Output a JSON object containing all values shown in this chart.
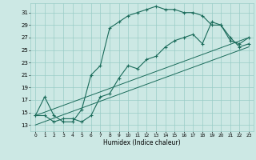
{
  "xlabel": "Humidex (Indice chaleur)",
  "bg_color": "#cce8e4",
  "grid_color": "#99ccc6",
  "line_color": "#1a6b5a",
  "xlim": [
    -0.5,
    23.5
  ],
  "ylim": [
    12.0,
    32.5
  ],
  "yticks": [
    13,
    15,
    17,
    19,
    21,
    23,
    25,
    27,
    29,
    31
  ],
  "xticks": [
    0,
    1,
    2,
    3,
    4,
    5,
    6,
    7,
    8,
    9,
    10,
    11,
    12,
    13,
    14,
    15,
    16,
    17,
    18,
    19,
    20,
    21,
    22,
    23
  ],
  "series1": [
    14.5,
    17.5,
    14.5,
    13.5,
    13.5,
    15.5,
    21.0,
    22.5,
    28.5,
    29.5,
    30.5,
    31.0,
    31.5,
    32.0,
    31.5,
    31.5,
    31.0,
    31.0,
    30.5,
    29.0,
    29.0,
    26.5,
    26.0,
    27.0
  ],
  "series2": [
    14.5,
    14.5,
    13.5,
    14.0,
    14.0,
    13.5,
    14.5,
    17.5,
    18.0,
    20.5,
    22.5,
    22.0,
    23.5,
    24.0,
    25.5,
    26.5,
    27.0,
    27.5,
    26.0,
    29.5,
    29.0,
    27.0,
    25.5,
    26.0
  ],
  "diag1": [
    14.5,
    27.0
  ],
  "diag2": [
    13.0,
    25.5
  ]
}
